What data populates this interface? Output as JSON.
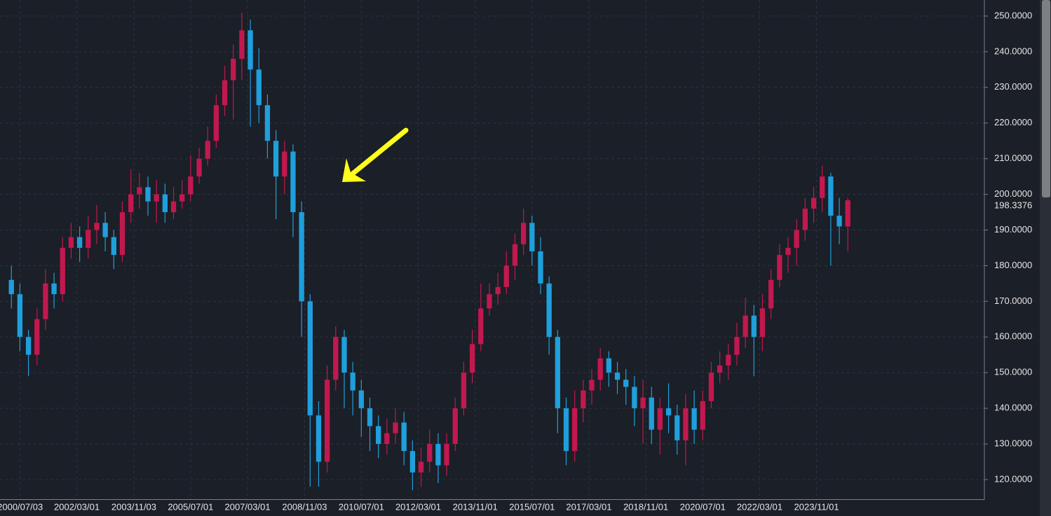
{
  "chart_data": {
    "type": "candlestick",
    "x": [
      "2000/04/01",
      "2000/07/01",
      "2000/10/01",
      "2001/01/01",
      "2001/04/01",
      "2001/07/01",
      "2001/10/01",
      "2002/01/01",
      "2002/04/01",
      "2002/07/01",
      "2002/10/01",
      "2003/01/01",
      "2003/04/01",
      "2003/07/01",
      "2003/10/01",
      "2004/01/01",
      "2004/04/01",
      "2004/07/01",
      "2004/10/01",
      "2005/01/01",
      "2005/04/01",
      "2005/07/01",
      "2005/10/01",
      "2006/01/01",
      "2006/04/01",
      "2006/07/01",
      "2006/10/01",
      "2007/01/01",
      "2007/04/01",
      "2007/07/01",
      "2007/10/01",
      "2008/01/01",
      "2008/04/01",
      "2008/07/01",
      "2008/10/01",
      "2009/01/01",
      "2009/04/01",
      "2009/07/01",
      "2009/10/01",
      "2010/01/01",
      "2010/04/01",
      "2010/07/01",
      "2010/10/01",
      "2011/01/01",
      "2011/04/01",
      "2011/07/01",
      "2011/10/01",
      "2012/01/01",
      "2012/04/01",
      "2012/07/01",
      "2012/10/01",
      "2013/01/01",
      "2013/04/01",
      "2013/07/01",
      "2013/10/01",
      "2014/01/01",
      "2014/04/01",
      "2014/07/01",
      "2014/10/01",
      "2015/01/01",
      "2015/04/01",
      "2015/07/01",
      "2015/10/01",
      "2016/01/01",
      "2016/04/01",
      "2016/07/01",
      "2016/10/01",
      "2017/01/01",
      "2017/04/01",
      "2017/07/01",
      "2017/10/01",
      "2018/01/01",
      "2018/04/01",
      "2018/07/01",
      "2018/10/01",
      "2019/01/01",
      "2019/04/01",
      "2019/07/01",
      "2019/10/01",
      "2020/01/01",
      "2020/04/01",
      "2020/07/01",
      "2020/10/01",
      "2021/01/01",
      "2021/04/01",
      "2021/07/01",
      "2021/10/01",
      "2022/01/01",
      "2022/04/01",
      "2022/07/01",
      "2022/10/01",
      "2023/01/01",
      "2023/04/01",
      "2023/07/01",
      "2023/10/01",
      "2024/01/01",
      "2024/04/01",
      "2024/07/01",
      "2024/10/01"
    ],
    "open": [
      176,
      172,
      160,
      155,
      165,
      175,
      172,
      185,
      188,
      185,
      190,
      192,
      188,
      183,
      195,
      200,
      202,
      198,
      200,
      195,
      198,
      200,
      205,
      210,
      215,
      225,
      232,
      238,
      246,
      235,
      225,
      215,
      205,
      212,
      195,
      170,
      138,
      125,
      148,
      160,
      150,
      145,
      140,
      135,
      130,
      133,
      136,
      128,
      122,
      125,
      130,
      124,
      130,
      140,
      150,
      158,
      168,
      172,
      174,
      180,
      186,
      192,
      184,
      175,
      160,
      140,
      128,
      140,
      145,
      148,
      154,
      150,
      148,
      146,
      140,
      143,
      134,
      140,
      138,
      131,
      140,
      134,
      142,
      150,
      152,
      155,
      160,
      166,
      160,
      168,
      176,
      183,
      185,
      190,
      196,
      199,
      205,
      194,
      191
    ],
    "high": [
      180,
      175,
      162,
      168,
      179,
      178,
      188,
      192,
      191,
      194,
      197,
      195,
      190,
      198,
      207,
      206,
      205,
      204,
      203,
      202,
      204,
      211,
      213,
      219,
      228,
      236,
      242,
      251,
      249,
      241,
      228,
      218,
      215,
      214,
      198,
      172,
      142,
      152,
      163,
      162,
      153,
      148,
      143,
      138,
      137,
      140,
      139,
      131,
      129,
      134,
      133,
      133,
      143,
      153,
      162,
      175,
      175,
      178,
      184,
      189,
      196,
      194,
      188,
      177,
      162,
      143,
      145,
      148,
      151,
      157,
      156,
      153,
      151,
      149,
      148,
      146,
      143,
      147,
      141,
      144,
      145,
      145,
      153,
      156,
      158,
      164,
      171,
      169,
      172,
      179,
      186,
      188,
      193,
      199,
      202,
      208,
      206,
      199,
      199
    ],
    "low": [
      168,
      156,
      149,
      152,
      162,
      168,
      170,
      182,
      181,
      182,
      186,
      184,
      179,
      181,
      192,
      196,
      194,
      192,
      192,
      193,
      196,
      198,
      203,
      208,
      213,
      222,
      221,
      232,
      219,
      220,
      210,
      193,
      200,
      188,
      160,
      118,
      118,
      122,
      145,
      140,
      138,
      132,
      128,
      126,
      127,
      130,
      124,
      117,
      118,
      122,
      119,
      121,
      128,
      138,
      147,
      156,
      166,
      169,
      172,
      176,
      183,
      180,
      172,
      155,
      133,
      124,
      125,
      136,
      141,
      145,
      146,
      144,
      141,
      135,
      130,
      130,
      127,
      133,
      127,
      124,
      130,
      131,
      140,
      147,
      148,
      152,
      157,
      149,
      156,
      165,
      174,
      178,
      180,
      187,
      192,
      195,
      180,
      186,
      184
    ],
    "close": [
      172,
      160,
      155,
      165,
      175,
      172,
      185,
      188,
      185,
      190,
      192,
      188,
      183,
      195,
      200,
      202,
      198,
      200,
      195,
      198,
      200,
      205,
      210,
      215,
      225,
      232,
      238,
      246,
      235,
      225,
      215,
      205,
      212,
      195,
      170,
      138,
      125,
      148,
      160,
      150,
      145,
      140,
      135,
      130,
      133,
      136,
      128,
      122,
      125,
      130,
      124,
      130,
      140,
      150,
      158,
      168,
      172,
      174,
      180,
      186,
      192,
      184,
      175,
      160,
      140,
      128,
      140,
      145,
      148,
      154,
      150,
      148,
      146,
      140,
      143,
      134,
      140,
      138,
      131,
      140,
      134,
      142,
      150,
      152,
      155,
      160,
      166,
      160,
      168,
      176,
      183,
      185,
      190,
      196,
      199,
      205,
      194,
      191,
      198.3376
    ],
    "up_color": "#c2184f",
    "down_color": "#1f9fdc",
    "xlim": [
      "1999/12/01",
      "2028/10/01"
    ],
    "xticks": [
      "2000/07/03",
      "2002/03/01",
      "2003/11/03",
      "2005/07/01",
      "2007/03/01",
      "2008/11/03",
      "2010/07/01",
      "2012/03/01",
      "2013/11/01",
      "2015/07/01",
      "2017/03/01",
      "2018/11/01",
      "2020/07/01",
      "2022/03/01",
      "2023/11/01"
    ],
    "ylim": [
      114.5,
      254.5
    ],
    "yticks": [
      {
        "value": 120,
        "label": "120.0000"
      },
      {
        "value": 130,
        "label": "130.0000"
      },
      {
        "value": 140,
        "label": "140.0000"
      },
      {
        "value": 150,
        "label": "150.0000"
      },
      {
        "value": 160,
        "label": "160.0000"
      },
      {
        "value": 170,
        "label": "170.0000"
      },
      {
        "value": 180,
        "label": "180.0000"
      },
      {
        "value": 190,
        "label": "190.0000"
      },
      {
        "value": 200,
        "label": "200.0000"
      },
      {
        "value": 210,
        "label": "210.0000"
      },
      {
        "value": 220,
        "label": "220.0000"
      },
      {
        "value": 230,
        "label": "230.0000"
      },
      {
        "value": 240,
        "label": "240.0000"
      },
      {
        "value": 250,
        "label": "250.0000"
      }
    ],
    "grid": true
  }
}
